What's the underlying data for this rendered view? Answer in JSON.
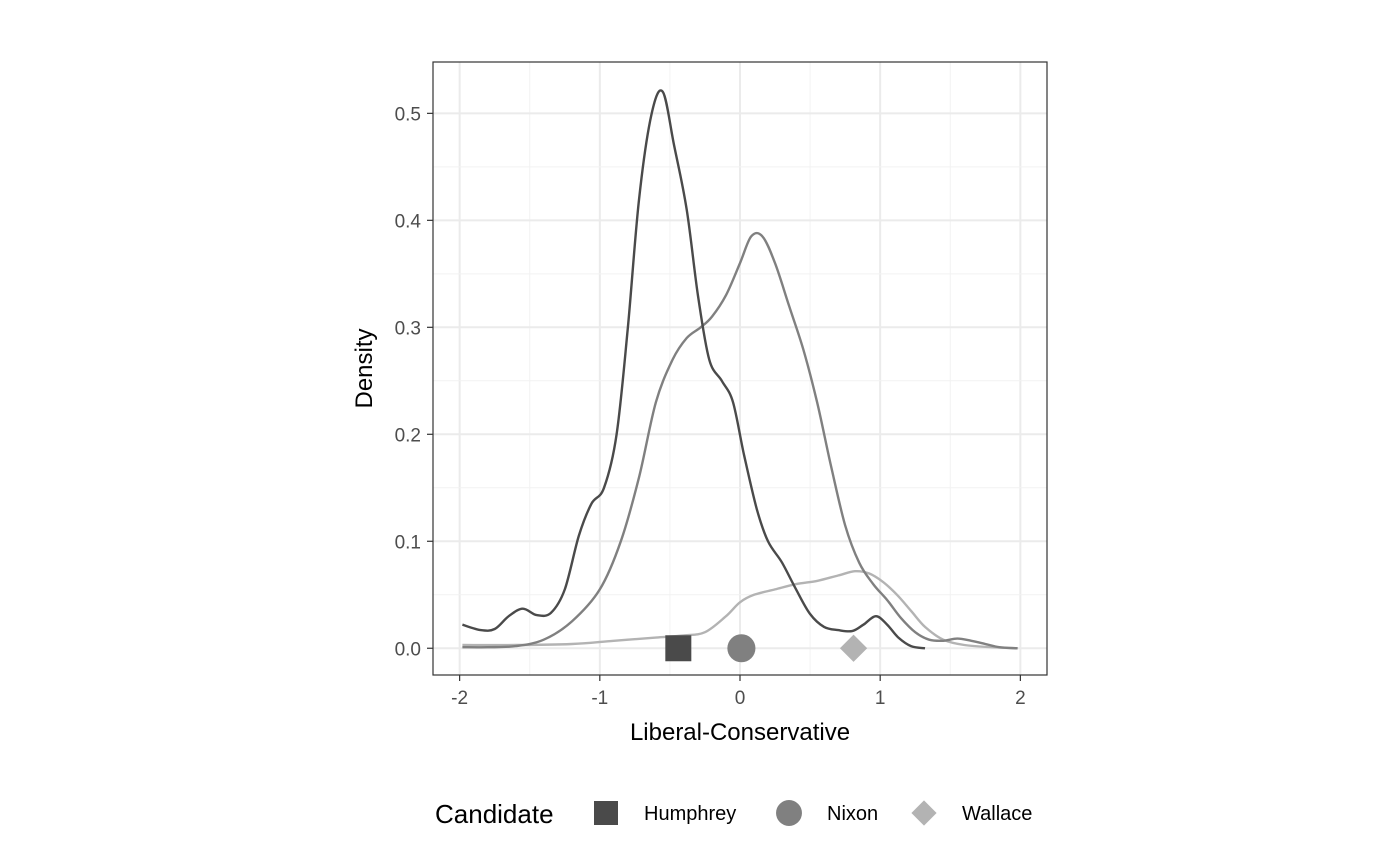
{
  "chart_data": {
    "type": "line",
    "xlabel": "Liberal-Conservative",
    "ylabel": "Density",
    "xlim": [
      -2.19,
      2.19
    ],
    "ylim": [
      -0.025,
      0.548
    ],
    "x_ticks": [
      -2,
      -1,
      0,
      1,
      2
    ],
    "x_tick_labels": [
      "-2",
      "-1",
      "0",
      "1",
      "2"
    ],
    "y_ticks": [
      0.0,
      0.1,
      0.2,
      0.3,
      0.4,
      0.5
    ],
    "y_tick_labels": [
      "0.0",
      "0.1",
      "0.2",
      "0.3",
      "0.4",
      "0.5"
    ],
    "grid": true,
    "legend_position": "bottom",
    "legend_title": "Candidate",
    "series": [
      {
        "name": "Humphrey",
        "color": "#4a4a4a",
        "marker": "square",
        "marker_x": -0.44,
        "points": [
          [
            -1.98,
            0.022
          ],
          [
            -1.85,
            0.017
          ],
          [
            -1.75,
            0.018
          ],
          [
            -1.65,
            0.03
          ],
          [
            -1.55,
            0.037
          ],
          [
            -1.45,
            0.031
          ],
          [
            -1.35,
            0.033
          ],
          [
            -1.25,
            0.055
          ],
          [
            -1.15,
            0.105
          ],
          [
            -1.06,
            0.135
          ],
          [
            -0.97,
            0.15
          ],
          [
            -0.88,
            0.2
          ],
          [
            -0.8,
            0.3
          ],
          [
            -0.72,
            0.42
          ],
          [
            -0.63,
            0.5
          ],
          [
            -0.55,
            0.52
          ],
          [
            -0.47,
            0.47
          ],
          [
            -0.38,
            0.41
          ],
          [
            -0.3,
            0.33
          ],
          [
            -0.22,
            0.27
          ],
          [
            -0.13,
            0.25
          ],
          [
            -0.05,
            0.23
          ],
          [
            0.03,
            0.18
          ],
          [
            0.12,
            0.13
          ],
          [
            0.2,
            0.1
          ],
          [
            0.3,
            0.08
          ],
          [
            0.4,
            0.055
          ],
          [
            0.5,
            0.032
          ],
          [
            0.6,
            0.02
          ],
          [
            0.7,
            0.017
          ],
          [
            0.8,
            0.016
          ],
          [
            0.88,
            0.022
          ],
          [
            0.97,
            0.03
          ],
          [
            1.05,
            0.022
          ],
          [
            1.13,
            0.01
          ],
          [
            1.22,
            0.002
          ],
          [
            1.32,
            0.0
          ]
        ]
      },
      {
        "name": "Nixon",
        "color": "#808080",
        "marker": "circle",
        "marker_x": 0.01,
        "points": [
          [
            -1.98,
            0.001
          ],
          [
            -1.8,
            0.001
          ],
          [
            -1.6,
            0.002
          ],
          [
            -1.4,
            0.008
          ],
          [
            -1.2,
            0.025
          ],
          [
            -1.0,
            0.055
          ],
          [
            -0.85,
            0.1
          ],
          [
            -0.72,
            0.16
          ],
          [
            -0.6,
            0.23
          ],
          [
            -0.48,
            0.27
          ],
          [
            -0.38,
            0.29
          ],
          [
            -0.28,
            0.3
          ],
          [
            -0.2,
            0.31
          ],
          [
            -0.1,
            0.33
          ],
          [
            0.0,
            0.36
          ],
          [
            0.08,
            0.385
          ],
          [
            0.16,
            0.385
          ],
          [
            0.25,
            0.36
          ],
          [
            0.35,
            0.32
          ],
          [
            0.45,
            0.28
          ],
          [
            0.55,
            0.23
          ],
          [
            0.65,
            0.17
          ],
          [
            0.75,
            0.115
          ],
          [
            0.85,
            0.08
          ],
          [
            0.95,
            0.06
          ],
          [
            1.05,
            0.045
          ],
          [
            1.15,
            0.028
          ],
          [
            1.25,
            0.015
          ],
          [
            1.35,
            0.008
          ],
          [
            1.45,
            0.007
          ],
          [
            1.55,
            0.009
          ],
          [
            1.65,
            0.007
          ],
          [
            1.75,
            0.004
          ],
          [
            1.85,
            0.001
          ],
          [
            1.98,
            0.0
          ]
        ]
      },
      {
        "name": "Wallace",
        "color": "#b3b3b3",
        "marker": "diamond",
        "marker_x": 0.81,
        "points": [
          [
            -1.98,
            0.003
          ],
          [
            -1.6,
            0.003
          ],
          [
            -1.2,
            0.004
          ],
          [
            -0.9,
            0.007
          ],
          [
            -0.6,
            0.01
          ],
          [
            -0.4,
            0.012
          ],
          [
            -0.25,
            0.015
          ],
          [
            -0.1,
            0.03
          ],
          [
            0.0,
            0.043
          ],
          [
            0.1,
            0.05
          ],
          [
            0.25,
            0.055
          ],
          [
            0.4,
            0.06
          ],
          [
            0.55,
            0.063
          ],
          [
            0.7,
            0.068
          ],
          [
            0.82,
            0.072
          ],
          [
            0.92,
            0.07
          ],
          [
            1.02,
            0.062
          ],
          [
            1.12,
            0.05
          ],
          [
            1.22,
            0.035
          ],
          [
            1.32,
            0.02
          ],
          [
            1.45,
            0.008
          ],
          [
            1.6,
            0.003
          ],
          [
            1.8,
            0.001
          ],
          [
            1.98,
            0.0
          ]
        ]
      }
    ]
  }
}
